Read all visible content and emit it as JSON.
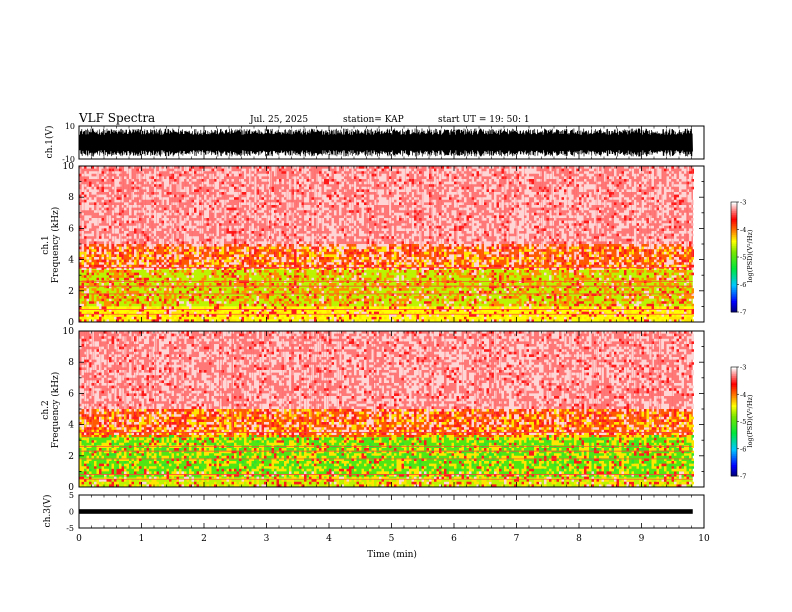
{
  "header": {
    "title": "VLF Spectra",
    "date": "Jul. 25, 2025",
    "station": "station= KAP",
    "start": "start  UT =   19: 50: 1"
  },
  "chart_data": {
    "type": "heatmap",
    "xlabel": "Time (min)",
    "xlim": [
      0,
      10
    ],
    "xticks": [
      "0",
      "1",
      "2",
      "3",
      "4",
      "5",
      "6",
      "7",
      "8",
      "9",
      "10"
    ],
    "data_end_min": 9.82,
    "panels": [
      {
        "name": "ch1-waveform",
        "ylabel": "ch.1(V)",
        "ylim": [
          -10,
          10
        ],
        "yticklabels": [
          "10",
          "-10"
        ],
        "amplitude_fraction": 0.85
      },
      {
        "name": "ch1-spectrogram",
        "ylabel": "Frequency (kHz)",
        "ylabel2": "ch.1",
        "ylim": [
          0,
          10
        ],
        "yticks": [
          "0",
          "2",
          "4",
          "6",
          "8",
          "10"
        ],
        "bands": [
          {
            "from": 0.0,
            "to": 1.0,
            "level": -4.4
          },
          {
            "from": 1.0,
            "to": 3.4,
            "level": -4.6
          },
          {
            "from": 3.4,
            "to": 5.0,
            "level": -3.9
          },
          {
            "from": 5.0,
            "to": 10.0,
            "level": -3.3
          }
        ]
      },
      {
        "name": "ch2-spectrogram",
        "ylabel": "Frequency (kHz)",
        "ylabel2": "ch.2",
        "ylim": [
          0,
          10
        ],
        "yticks": [
          "0",
          "2",
          "4",
          "6",
          "8",
          "10"
        ],
        "bands": [
          {
            "from": 0.0,
            "to": 0.6,
            "level": -4.6
          },
          {
            "from": 0.6,
            "to": 3.2,
            "level": -5.0
          },
          {
            "from": 3.2,
            "to": 5.0,
            "level": -3.9
          },
          {
            "from": 5.0,
            "to": 10.0,
            "level": -3.3
          }
        ]
      },
      {
        "name": "ch3-waveform",
        "ylabel": "ch.3(V)",
        "ylim": [
          -5,
          5
        ],
        "yticks": [
          "5",
          "0",
          "-5"
        ],
        "band_center": 0,
        "band_halfwidth": 0.7
      }
    ],
    "colorbar": {
      "label": "log(PSD)(V²/Hz)",
      "range": [
        -7,
        -3
      ],
      "ticks": [
        "-3",
        "-4",
        "-5",
        "-6",
        "-7"
      ]
    }
  }
}
